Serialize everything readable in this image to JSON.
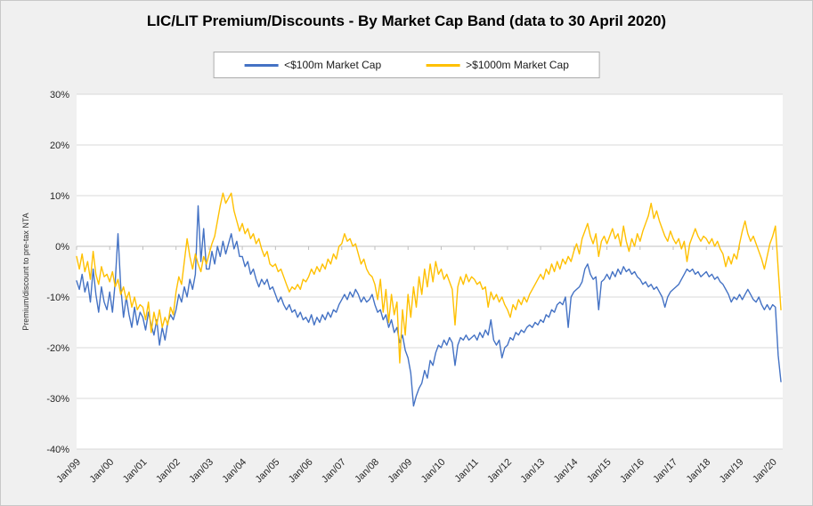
{
  "chart_data": {
    "type": "line",
    "title": "LIC/LIT Premium/Discounts - By Market Cap Band (data to 30 April 2020)",
    "xlabel": "",
    "ylabel": "Premium/discount to pre-tax NTA",
    "ylim": [
      -40,
      30
    ],
    "yticks": [
      30,
      20,
      10,
      0,
      -10,
      -20,
      -30,
      -40
    ],
    "ytick_labels": [
      "30%",
      "20%",
      "10%",
      "0%",
      "-10%",
      "-20%",
      "-30%",
      "-40%"
    ],
    "xtick_labels": [
      "Jan/99",
      "Jan/00",
      "Jan/01",
      "Jan/02",
      "Jan/03",
      "Jan/04",
      "Jan/05",
      "Jan/06",
      "Jan/07",
      "Jan/08",
      "Jan/09",
      "Jan/10",
      "Jan/11",
      "Jan/12",
      "Jan/13",
      "Jan/14",
      "Jan/15",
      "Jan/16",
      "Jan/17",
      "Jan/18",
      "Jan/19",
      "Jan/20"
    ],
    "xtick_interval_months": 12,
    "x_start": "Jan 1999",
    "x_end": "Apr 2020",
    "frequency": "monthly",
    "grid": "horizontal",
    "legend_position": "top",
    "colors": {
      "small_cap": "#4472C4",
      "large_cap": "#FFC000",
      "gridline": "#D9D9D9",
      "zero_axis": "#BFBFBF",
      "plot_bg": "#FFFFFF",
      "outer_bg": "#F0F0F0"
    },
    "series": [
      {
        "name": "<$100m Market Cap",
        "color": "#4472C4",
        "values": [
          -6.8,
          -8.5,
          -5.5,
          -9,
          -7,
          -11,
          -4.5,
          -9.5,
          -13,
          -8,
          -11,
          -12.5,
          -9,
          -13,
          -7,
          2.5,
          -8,
          -14,
          -10,
          -13.5,
          -16,
          -12,
          -15.5,
          -13,
          -14,
          -16.5,
          -13,
          -15.5,
          -17.5,
          -14.5,
          -19.5,
          -16,
          -18.5,
          -15,
          -13.5,
          -14.5,
          -12.5,
          -9.5,
          -11,
          -8,
          -10,
          -6.5,
          -8.5,
          -5.5,
          8,
          -3,
          3.5,
          -4.5,
          -4.5,
          -1,
          -3.5,
          0,
          -2,
          1,
          -1.5,
          0.5,
          2.5,
          -0.5,
          1,
          -2,
          -2,
          -4,
          -3,
          -5.5,
          -4.5,
          -6.5,
          -8,
          -6.5,
          -7.5,
          -6.5,
          -8.5,
          -8,
          -9.5,
          -11,
          -10,
          -11.5,
          -12.5,
          -11.5,
          -13,
          -12.5,
          -14,
          -13,
          -14.5,
          -14,
          -15,
          -13.5,
          -15.5,
          -14,
          -15,
          -13.5,
          -14.5,
          -13,
          -14,
          -12.5,
          -13,
          -11.5,
          -10.5,
          -9.5,
          -10.5,
          -9,
          -10,
          -8.5,
          -9.5,
          -11,
          -10,
          -11,
          -10.5,
          -9.5,
          -11.5,
          -13,
          -12.5,
          -14.5,
          -13.5,
          -16,
          -14.5,
          -17,
          -16,
          -19,
          -17.5,
          -20.5,
          -22,
          -25,
          -31.5,
          -29.5,
          -28,
          -27,
          -24.5,
          -26,
          -22.5,
          -23.5,
          -21,
          -19.5,
          -20,
          -18.5,
          -19.5,
          -18,
          -19,
          -23.5,
          -19.5,
          -18,
          -18.5,
          -17.5,
          -18.5,
          -18,
          -17.5,
          -18.5,
          -17,
          -18,
          -16.5,
          -17.5,
          -14.5,
          -18.5,
          -19.5,
          -18.5,
          -22,
          -20,
          -19.5,
          -18,
          -18.5,
          -17,
          -17.5,
          -16.5,
          -17,
          -16,
          -15.5,
          -16,
          -15,
          -15.5,
          -14.5,
          -15,
          -13.5,
          -14,
          -12.5,
          -13,
          -11.5,
          -11,
          -11.5,
          -10,
          -16,
          -10,
          -9,
          -8.5,
          -8,
          -7,
          -4.5,
          -3.5,
          -5.5,
          -6.5,
          -6,
          -12.5,
          -7,
          -6.5,
          -5.5,
          -6.5,
          -5,
          -6,
          -4.5,
          -5.5,
          -4,
          -5,
          -4.5,
          -5.5,
          -5,
          -6,
          -6.5,
          -7.5,
          -7,
          -8,
          -7.5,
          -8.5,
          -8,
          -9,
          -10,
          -12,
          -10,
          -9,
          -8.5,
          -8,
          -7.5,
          -6.5,
          -5.5,
          -4.5,
          -5,
          -4.5,
          -5.5,
          -5,
          -6,
          -5.5,
          -5,
          -6,
          -5.5,
          -6.5,
          -6,
          -7,
          -7.5,
          -8.5,
          -9.5,
          -11,
          -10,
          -10.5,
          -9.5,
          -10.5,
          -9.5,
          -8.5,
          -9.5,
          -10.5,
          -11,
          -10,
          -11.5,
          -12.5,
          -11.5,
          -12.5,
          -11.5,
          -12,
          -21.5,
          -26.7
        ]
      },
      {
        "name": ">$1000m Market Cap",
        "color": "#FFC000",
        "values": [
          -2,
          -4.5,
          -1.5,
          -5,
          -3,
          -6.5,
          -1,
          -5.5,
          -7.5,
          -4,
          -6,
          -5.5,
          -7,
          -5,
          -8,
          -6.5,
          -9.5,
          -8,
          -10.5,
          -9,
          -12,
          -10,
          -12.5,
          -11.5,
          -12,
          -14.5,
          -11,
          -17,
          -13,
          -15.5,
          -12.5,
          -16,
          -14,
          -15.5,
          -12,
          -13.5,
          -9,
          -6,
          -7.5,
          -3,
          1.5,
          -2,
          -4.5,
          -1.5,
          -3.5,
          -5,
          -2,
          -3.5,
          -1.5,
          0.5,
          2,
          5,
          8,
          10.5,
          8.5,
          9.5,
          10.5,
          7,
          5,
          3,
          4.5,
          2.5,
          3.5,
          1.5,
          2.5,
          0.5,
          1.5,
          -0.5,
          -2,
          -1,
          -3.5,
          -4,
          -3.5,
          -5,
          -4.5,
          -6,
          -7.5,
          -9,
          -8,
          -8.5,
          -7.5,
          -8.5,
          -6.5,
          -7,
          -6,
          -4.5,
          -5.5,
          -4,
          -5,
          -3.5,
          -4.5,
          -2.5,
          -3.5,
          -1.5,
          -2.5,
          0,
          0.5,
          2.5,
          1,
          1.5,
          0,
          0.5,
          -1.5,
          -3.5,
          -2.5,
          -4.5,
          -5.5,
          -6,
          -7.5,
          -10.5,
          -6.5,
          -13,
          -8.5,
          -15,
          -9.5,
          -13.5,
          -11,
          -23,
          -12.5,
          -17.5,
          -9.5,
          -14,
          -8,
          -12,
          -6,
          -9.5,
          -4.5,
          -8,
          -3.5,
          -7,
          -3,
          -5.5,
          -4.5,
          -6.5,
          -5.5,
          -7,
          -8.5,
          -15.5,
          -8,
          -6,
          -7.5,
          -5.5,
          -7,
          -6,
          -6.5,
          -7.5,
          -7,
          -8.5,
          -8,
          -12,
          -9,
          -10.5,
          -9.5,
          -11,
          -10,
          -11.5,
          -12.5,
          -14,
          -11.5,
          -12.5,
          -10.5,
          -11.5,
          -10,
          -11,
          -9.5,
          -8.5,
          -7.5,
          -6.5,
          -5.5,
          -6.5,
          -4.5,
          -5.5,
          -3.5,
          -5,
          -3,
          -4.5,
          -2.5,
          -3.5,
          -2,
          -3,
          -1,
          0.5,
          -1.5,
          1.5,
          3,
          4.5,
          2,
          0.5,
          2.5,
          -2,
          1,
          2,
          0.5,
          2,
          3.5,
          1.5,
          2.5,
          0,
          4,
          1,
          -1,
          1.5,
          0,
          2.5,
          1,
          3,
          4.5,
          6,
          8.5,
          5.5,
          7,
          5,
          3.5,
          2,
          1,
          3,
          1.5,
          0.5,
          1.5,
          -0.5,
          1,
          -3,
          0.5,
          2,
          3.5,
          2,
          1,
          2,
          1.5,
          0.5,
          1.5,
          0,
          1,
          -0.5,
          -1.5,
          -4,
          -2,
          -3.5,
          -1.5,
          -2.5,
          0.5,
          3,
          5,
          2.5,
          1,
          2,
          0.5,
          -1,
          -2.5,
          -4.5,
          -2,
          0.5,
          2,
          4,
          -4.5,
          -12.5
        ]
      }
    ]
  }
}
